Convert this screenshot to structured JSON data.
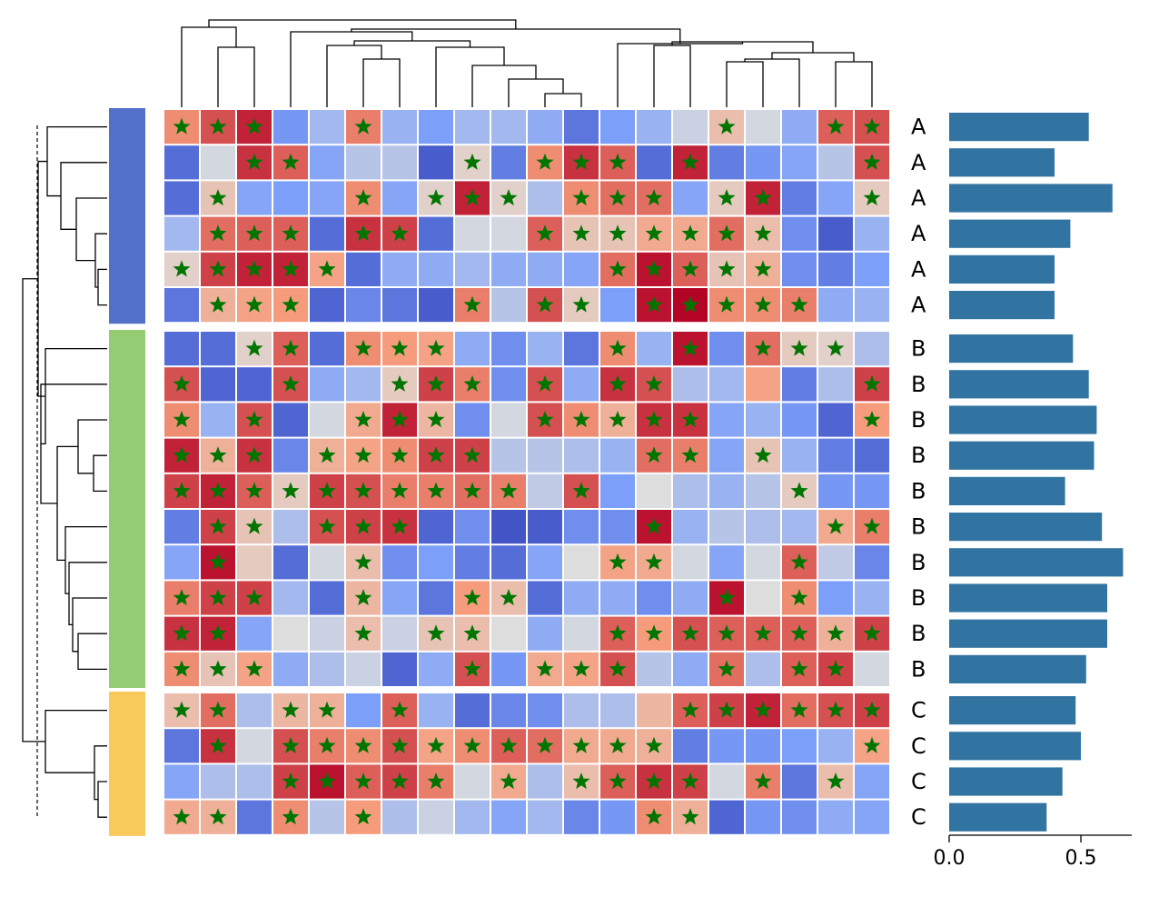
{
  "chart_data": {
    "type": "heatmap",
    "title": "",
    "groups": [
      {
        "label": "A",
        "color": "#5471c9",
        "rows": 6
      },
      {
        "label": "B",
        "color": "#93cc72",
        "rows": 10
      },
      {
        "label": "C",
        "color": "#f8c95b",
        "rows": 4
      }
    ],
    "colormap": "coolwarm",
    "matrix": [
      [
        0.55,
        0.75,
        0.9,
        -0.55,
        -0.3,
        0.6,
        -0.35,
        -0.5,
        -0.3,
        -0.3,
        -0.4,
        -0.75,
        -0.5,
        -0.35,
        -0.1,
        0.25,
        -0.05,
        -0.4,
        0.7,
        0.75
      ],
      [
        -0.8,
        -0.05,
        0.85,
        0.7,
        -0.45,
        -0.2,
        -0.2,
        -0.9,
        0.1,
        -0.7,
        0.55,
        0.85,
        0.7,
        -0.8,
        0.9,
        -0.7,
        -0.55,
        -0.45,
        -0.2,
        0.75
      ],
      [
        -0.8,
        0.2,
        -0.45,
        -0.5,
        -0.45,
        0.55,
        -0.45,
        0.1,
        0.9,
        0.1,
        -0.25,
        0.55,
        0.65,
        0.65,
        -0.45,
        0.15,
        0.9,
        -0.7,
        -0.45,
        0.15
      ],
      [
        -0.3,
        0.65,
        0.7,
        0.7,
        -0.8,
        0.85,
        0.8,
        -0.8,
        -0.05,
        -0.05,
        0.7,
        0.2,
        0.2,
        0.4,
        0.4,
        0.65,
        0.25,
        -0.6,
        -0.9,
        -0.35
      ],
      [
        0.1,
        0.8,
        0.9,
        0.9,
        0.45,
        -0.8,
        -0.4,
        -0.4,
        -0.3,
        -0.4,
        -0.4,
        -0.45,
        0.65,
        0.95,
        0.7,
        0.2,
        0.35,
        -0.6,
        -0.7,
        -0.5
      ],
      [
        -0.75,
        0.35,
        0.45,
        0.5,
        -0.85,
        -0.65,
        -0.75,
        -0.9,
        0.6,
        -0.2,
        0.75,
        0.15,
        -0.5,
        0.95,
        1.0,
        0.55,
        0.55,
        0.6,
        -0.4,
        -0.35
      ],
      [
        -0.8,
        -0.8,
        0.1,
        0.7,
        -0.8,
        0.55,
        0.5,
        0.45,
        -0.4,
        -0.6,
        -0.35,
        -0.75,
        0.55,
        -0.35,
        0.95,
        -0.6,
        0.65,
        0.15,
        0.1,
        -0.25
      ],
      [
        0.75,
        -0.85,
        -0.85,
        0.75,
        -0.4,
        -0.3,
        0.15,
        0.8,
        0.6,
        -0.6,
        0.75,
        -0.4,
        0.85,
        0.75,
        -0.25,
        -0.3,
        0.45,
        -0.7,
        -0.25,
        0.8
      ],
      [
        0.55,
        -0.35,
        0.75,
        -0.85,
        -0.05,
        0.4,
        0.9,
        0.3,
        -0.6,
        -0.05,
        0.75,
        0.55,
        0.35,
        0.85,
        0.85,
        -0.45,
        -0.35,
        -0.55,
        -0.85,
        0.5
      ],
      [
        0.9,
        0.35,
        0.85,
        -0.65,
        0.35,
        0.45,
        0.55,
        0.8,
        0.8,
        -0.2,
        -0.2,
        -0.25,
        -0.35,
        0.65,
        0.6,
        -0.45,
        0.2,
        -0.35,
        -0.7,
        -0.8
      ],
      [
        0.8,
        0.9,
        0.7,
        0.15,
        0.8,
        0.75,
        0.6,
        0.6,
        0.65,
        0.6,
        -0.15,
        0.75,
        -0.5,
        0.0,
        -0.25,
        -0.35,
        -0.2,
        0.15,
        -0.55,
        -0.55
      ],
      [
        -0.7,
        0.8,
        0.2,
        -0.25,
        0.75,
        0.8,
        0.85,
        -0.85,
        -0.6,
        -0.95,
        -0.9,
        -0.6,
        -0.6,
        0.95,
        -0.35,
        -0.2,
        -0.25,
        -0.3,
        0.4,
        0.6
      ],
      [
        -0.45,
        0.95,
        0.15,
        -0.8,
        -0.05,
        0.25,
        -0.6,
        -0.5,
        -0.7,
        -0.8,
        -0.45,
        0.0,
        0.45,
        0.4,
        -0.05,
        -0.45,
        -0.05,
        0.7,
        -0.15,
        -0.65
      ],
      [
        0.6,
        0.8,
        0.8,
        -0.3,
        -0.8,
        0.3,
        -0.45,
        -0.75,
        0.5,
        0.25,
        -0.8,
        -0.4,
        -0.4,
        -0.6,
        -0.4,
        0.95,
        0.0,
        0.55,
        -0.5,
        -0.35
      ],
      [
        0.85,
        0.9,
        -0.45,
        0.0,
        -0.1,
        0.25,
        -0.1,
        0.2,
        0.25,
        0.0,
        -0.4,
        -0.05,
        0.7,
        0.5,
        0.75,
        0.7,
        0.7,
        0.7,
        0.35,
        0.8
      ],
      [
        0.55,
        0.2,
        0.45,
        -0.4,
        -0.25,
        -0.1,
        -0.85,
        -0.4,
        0.75,
        -0.55,
        0.4,
        0.45,
        0.75,
        -0.2,
        -0.4,
        0.65,
        -0.25,
        0.7,
        0.8,
        -0.05
      ],
      [
        0.25,
        0.65,
        -0.25,
        0.3,
        0.35,
        -0.5,
        0.7,
        -0.35,
        -0.8,
        -0.65,
        -0.6,
        -0.25,
        -0.25,
        0.3,
        0.7,
        0.8,
        0.9,
        0.65,
        0.75,
        0.8
      ],
      [
        -0.75,
        0.85,
        -0.05,
        0.75,
        0.6,
        0.55,
        0.75,
        0.45,
        0.55,
        0.7,
        0.65,
        0.4,
        0.4,
        0.35,
        -0.7,
        -0.55,
        -0.55,
        -0.5,
        -0.35,
        0.45
      ],
      [
        -0.45,
        -0.25,
        -0.25,
        0.8,
        0.95,
        0.7,
        0.8,
        0.6,
        -0.05,
        0.4,
        -0.25,
        0.25,
        0.7,
        0.85,
        0.8,
        -0.05,
        0.6,
        -0.75,
        0.25,
        -0.45
      ],
      [
        0.4,
        0.35,
        -0.75,
        0.55,
        -0.2,
        0.5,
        -0.25,
        -0.1,
        -0.3,
        -0.45,
        -0.3,
        -0.65,
        -0.55,
        0.55,
        0.35,
        -0.85,
        -0.55,
        -0.6,
        -0.4,
        -0.45
      ]
    ],
    "significant": [
      [
        1,
        1,
        1,
        0,
        0,
        1,
        0,
        0,
        0,
        0,
        0,
        0,
        0,
        0,
        0,
        1,
        0,
        0,
        1,
        1
      ],
      [
        0,
        0,
        1,
        1,
        0,
        0,
        0,
        0,
        1,
        0,
        1,
        1,
        1,
        0,
        1,
        0,
        0,
        0,
        0,
        1
      ],
      [
        0,
        1,
        0,
        0,
        0,
        1,
        0,
        1,
        1,
        1,
        0,
        1,
        1,
        1,
        0,
        1,
        1,
        0,
        0,
        1
      ],
      [
        0,
        1,
        1,
        1,
        0,
        1,
        1,
        0,
        0,
        0,
        1,
        1,
        1,
        1,
        1,
        1,
        1,
        0,
        0,
        0
      ],
      [
        1,
        1,
        1,
        1,
        1,
        0,
        0,
        0,
        0,
        0,
        0,
        0,
        1,
        1,
        1,
        1,
        1,
        0,
        0,
        0
      ],
      [
        0,
        1,
        1,
        1,
        0,
        0,
        0,
        0,
        1,
        0,
        1,
        1,
        0,
        1,
        1,
        1,
        1,
        1,
        0,
        0
      ],
      [
        0,
        0,
        1,
        1,
        0,
        1,
        1,
        1,
        0,
        0,
        0,
        0,
        1,
        0,
        1,
        0,
        1,
        1,
        1,
        0
      ],
      [
        1,
        0,
        0,
        1,
        0,
        0,
        1,
        1,
        1,
        0,
        1,
        0,
        1,
        1,
        0,
        0,
        0,
        0,
        0,
        1
      ],
      [
        1,
        0,
        1,
        0,
        0,
        1,
        1,
        1,
        0,
        0,
        1,
        1,
        1,
        1,
        1,
        0,
        0,
        0,
        0,
        1
      ],
      [
        1,
        1,
        1,
        0,
        1,
        1,
        1,
        1,
        1,
        0,
        0,
        0,
        0,
        1,
        1,
        0,
        1,
        0,
        0,
        0
      ],
      [
        1,
        1,
        1,
        1,
        1,
        1,
        1,
        1,
        1,
        1,
        0,
        1,
        0,
        0,
        0,
        0,
        0,
        1,
        0,
        0
      ],
      [
        0,
        1,
        1,
        0,
        1,
        1,
        1,
        0,
        0,
        0,
        0,
        0,
        0,
        1,
        0,
        0,
        0,
        0,
        1,
        1
      ],
      [
        0,
        1,
        0,
        0,
        0,
        1,
        0,
        0,
        0,
        0,
        0,
        0,
        1,
        1,
        0,
        0,
        0,
        1,
        0,
        0
      ],
      [
        1,
        1,
        1,
        0,
        0,
        1,
        0,
        0,
        1,
        1,
        0,
        0,
        0,
        0,
        0,
        1,
        0,
        1,
        0,
        0
      ],
      [
        1,
        1,
        0,
        0,
        0,
        1,
        0,
        1,
        1,
        0,
        0,
        0,
        1,
        1,
        1,
        1,
        1,
        1,
        1,
        1
      ],
      [
        1,
        1,
        1,
        0,
        0,
        0,
        0,
        0,
        1,
        0,
        1,
        1,
        1,
        0,
        0,
        1,
        0,
        1,
        1,
        0
      ],
      [
        1,
        1,
        0,
        1,
        1,
        0,
        1,
        0,
        0,
        0,
        0,
        0,
        0,
        0,
        1,
        1,
        1,
        1,
        1,
        1
      ],
      [
        0,
        1,
        0,
        1,
        1,
        1,
        1,
        1,
        1,
        1,
        1,
        1,
        1,
        1,
        0,
        0,
        0,
        0,
        0,
        1
      ],
      [
        0,
        0,
        0,
        1,
        1,
        1,
        1,
        1,
        0,
        1,
        0,
        1,
        1,
        1,
        1,
        0,
        1,
        0,
        1,
        0
      ],
      [
        1,
        1,
        0,
        1,
        0,
        1,
        0,
        0,
        0,
        0,
        0,
        0,
        0,
        1,
        1,
        0,
        0,
        0,
        0,
        0
      ]
    ],
    "row_labels": [
      "A",
      "A",
      "A",
      "A",
      "A",
      "A",
      "B",
      "B",
      "B",
      "B",
      "B",
      "B",
      "B",
      "B",
      "B",
      "B",
      "C",
      "C",
      "C",
      "C"
    ],
    "bar_values": [
      0.53,
      0.4,
      0.62,
      0.46,
      0.4,
      0.4,
      0.47,
      0.53,
      0.56,
      0.55,
      0.44,
      0.58,
      0.66,
      0.6,
      0.6,
      0.52,
      0.48,
      0.5,
      0.43,
      0.37
    ],
    "bar_color": "#3274a1",
    "bar_xlim": [
      0,
      0.7
    ],
    "bar_xticks": [
      0.0,
      0.5
    ],
    "bar_xtick_labels": [
      "0.0",
      "0.5"
    ],
    "marker": "star",
    "marker_color": "#007500",
    "column_dendrogram": true,
    "row_dendrogram": true
  }
}
